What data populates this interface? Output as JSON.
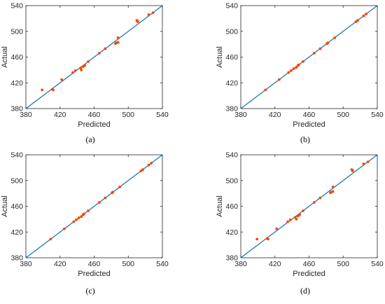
{
  "chart_data": [
    {
      "type": "scatter",
      "panel_label": "(a)",
      "xlabel": "Predicted",
      "ylabel": "Actual",
      "xlim": [
        380,
        540
      ],
      "ylim": [
        380,
        540
      ],
      "xticks": [
        380,
        420,
        460,
        500,
        540
      ],
      "yticks": [
        380,
        420,
        460,
        500,
        540
      ],
      "grid": false,
      "reference_line": {
        "from": [
          380,
          380
        ],
        "to": [
          540,
          540
        ],
        "color": "#1f77b4"
      },
      "points": {
        "color": "#ff4500",
        "x": [
          399,
          411,
          412,
          422,
          435,
          438,
          444,
          445,
          447,
          449,
          453,
          466,
          473,
          485,
          486,
          488,
          488,
          510,
          511,
          511,
          524,
          529
        ],
        "y": [
          409,
          410,
          409,
          425,
          436,
          439,
          443,
          440,
          445,
          447,
          453,
          466,
          473,
          481,
          482,
          490,
          483,
          517,
          516,
          515,
          526,
          529
        ]
      }
    },
    {
      "type": "scatter",
      "panel_label": "(b)",
      "xlabel": "Predicted",
      "ylabel": "Actual",
      "xlim": [
        380,
        540
      ],
      "ylim": [
        380,
        540
      ],
      "xticks": [
        380,
        420,
        460,
        500,
        540
      ],
      "yticks": [
        380,
        420,
        460,
        500,
        540
      ],
      "grid": false,
      "reference_line": {
        "from": [
          380,
          380
        ],
        "to": [
          540,
          540
        ],
        "color": "#1f77b4"
      },
      "points": {
        "color": "#ff4500",
        "x": [
          409,
          425,
          436,
          439,
          442,
          445,
          447,
          448,
          453,
          466,
          473,
          481,
          482,
          490,
          515,
          517,
          524,
          527
        ],
        "y": [
          409,
          425,
          436,
          439,
          442,
          444,
          447,
          448,
          453,
          466,
          473,
          481,
          482,
          490,
          515,
          517,
          524,
          527
        ]
      }
    },
    {
      "type": "scatter",
      "panel_label": "(c)",
      "xlabel": "Predicted",
      "ylabel": "Actual",
      "xlim": [
        380,
        540
      ],
      "ylim": [
        380,
        540
      ],
      "xticks": [
        380,
        420,
        460,
        500,
        540
      ],
      "yticks": [
        380,
        420,
        460,
        500,
        540
      ],
      "grid": false,
      "reference_line": {
        "from": [
          380,
          380
        ],
        "to": [
          540,
          540
        ],
        "color": "#1f77b4"
      },
      "points": {
        "color": "#ff4500",
        "x": [
          409,
          425,
          436,
          439,
          442,
          445,
          447,
          448,
          453,
          466,
          473,
          481,
          482,
          490,
          515,
          517,
          524,
          527
        ],
        "y": [
          409,
          425,
          436,
          439,
          442,
          444,
          447,
          448,
          453,
          466,
          473,
          481,
          482,
          490,
          515,
          517,
          524,
          527
        ]
      }
    },
    {
      "type": "scatter",
      "panel_label": "(d)",
      "xlabel": "Predicted",
      "ylabel": "Actual",
      "xlim": [
        380,
        540
      ],
      "ylim": [
        380,
        540
      ],
      "xticks": [
        380,
        420,
        460,
        500,
        540
      ],
      "yticks": [
        380,
        420,
        460,
        500,
        540
      ],
      "grid": false,
      "reference_line": {
        "from": [
          380,
          380
        ],
        "to": [
          540,
          540
        ],
        "color": "#1f77b4"
      },
      "points": {
        "color": "#ff4500",
        "x": [
          399,
          411,
          412,
          422,
          435,
          438,
          444,
          445,
          447,
          449,
          453,
          466,
          473,
          485,
          486,
          488,
          488,
          510,
          511,
          511,
          524,
          529
        ],
        "y": [
          409,
          410,
          409,
          425,
          436,
          439,
          443,
          440,
          445,
          447,
          453,
          466,
          473,
          481,
          482,
          490,
          483,
          517,
          516,
          515,
          526,
          529
        ]
      }
    }
  ]
}
